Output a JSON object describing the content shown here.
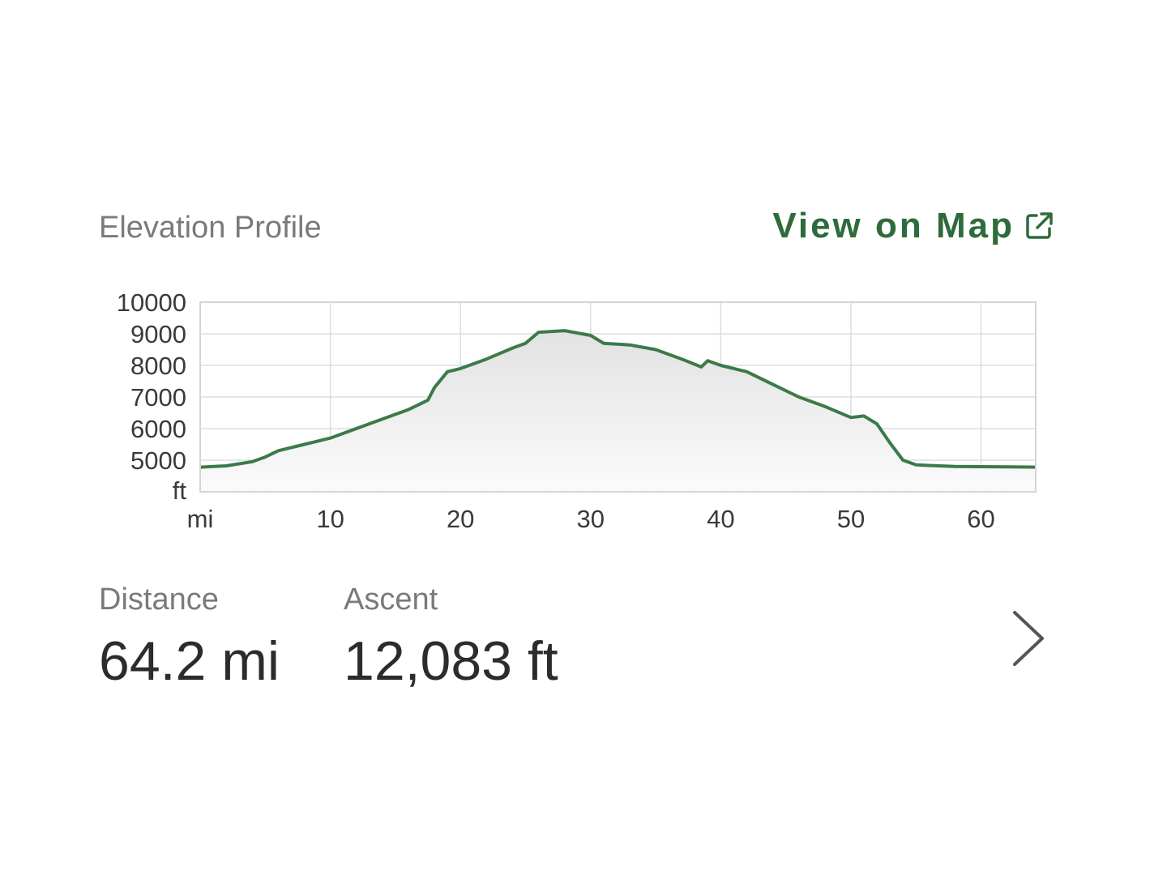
{
  "header": {
    "title": "Elevation Profile",
    "map_link_label": "View on Map"
  },
  "stats": {
    "distance_label": "Distance",
    "distance_value": "64.2 mi",
    "ascent_label": "Ascent",
    "ascent_value": "12,083 ft"
  },
  "colors": {
    "accent": "#2e6b3c",
    "line": "#3b7a4a",
    "grid": "#dddddd"
  },
  "icons": {
    "map_link": "external-link-icon",
    "next": "chevron-right-icon"
  },
  "chart_data": {
    "type": "area",
    "xlabel": "mi",
    "ylabel": "ft",
    "xlim": [
      0,
      64.2
    ],
    "ylim": [
      4000,
      10000
    ],
    "x_ticks": [
      10,
      20,
      30,
      40,
      50,
      60
    ],
    "y_ticks": [
      5000,
      6000,
      7000,
      8000,
      9000,
      10000
    ],
    "grid": true,
    "series": [
      {
        "x": [
          0,
          2,
          4,
          5,
          6,
          8,
          10,
          12,
          14,
          16,
          17.5,
          18,
          19,
          20,
          22,
          24,
          25,
          26,
          28,
          30,
          31,
          33,
          35,
          37,
          38.5,
          39,
          40,
          42,
          44,
          46,
          48,
          50,
          51,
          52,
          53,
          54,
          55,
          58,
          62,
          64.2
        ],
        "y": [
          4780,
          4820,
          4950,
          5100,
          5300,
          5500,
          5700,
          6000,
          6300,
          6600,
          6900,
          7300,
          7800,
          7900,
          8200,
          8550,
          8700,
          9050,
          9100,
          8950,
          8700,
          8650,
          8500,
          8200,
          7950,
          8150,
          8000,
          7800,
          7400,
          7000,
          6700,
          6350,
          6400,
          6150,
          5550,
          5000,
          4850,
          4800,
          4790,
          4780
        ]
      }
    ]
  }
}
